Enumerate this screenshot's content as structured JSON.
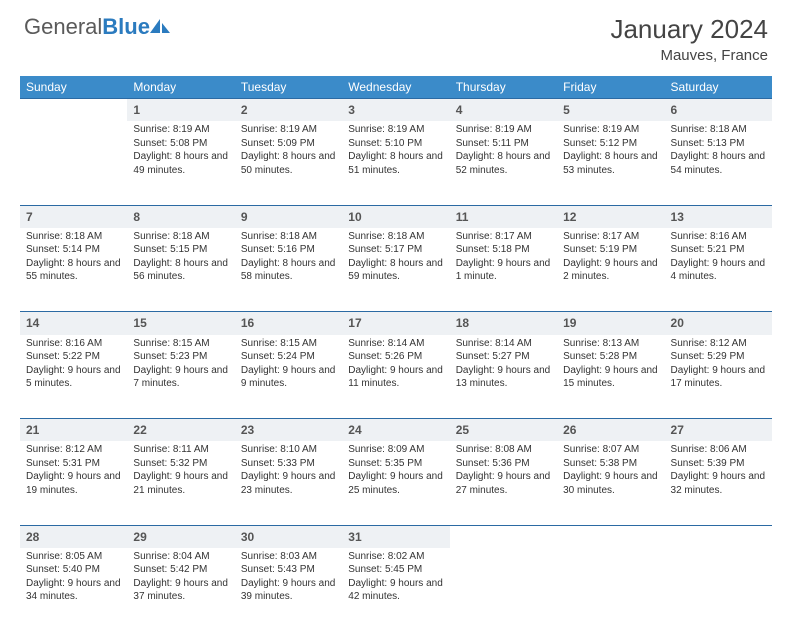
{
  "brand": {
    "part1": "General",
    "part2": "Blue"
  },
  "title": "January 2024",
  "location": "Mauves, France",
  "colors": {
    "header_bg": "#3b8bc9",
    "daynum_bg": "#eef1f4",
    "rule": "#2b6aa3"
  },
  "day_headers": [
    "Sunday",
    "Monday",
    "Tuesday",
    "Wednesday",
    "Thursday",
    "Friday",
    "Saturday"
  ],
  "weeks": [
    {
      "nums": [
        "",
        "1",
        "2",
        "3",
        "4",
        "5",
        "6"
      ],
      "cells": [
        null,
        {
          "sunrise": "Sunrise: 8:19 AM",
          "sunset": "Sunset: 5:08 PM",
          "daylight": "Daylight: 8 hours and 49 minutes."
        },
        {
          "sunrise": "Sunrise: 8:19 AM",
          "sunset": "Sunset: 5:09 PM",
          "daylight": "Daylight: 8 hours and 50 minutes."
        },
        {
          "sunrise": "Sunrise: 8:19 AM",
          "sunset": "Sunset: 5:10 PM",
          "daylight": "Daylight: 8 hours and 51 minutes."
        },
        {
          "sunrise": "Sunrise: 8:19 AM",
          "sunset": "Sunset: 5:11 PM",
          "daylight": "Daylight: 8 hours and 52 minutes."
        },
        {
          "sunrise": "Sunrise: 8:19 AM",
          "sunset": "Sunset: 5:12 PM",
          "daylight": "Daylight: 8 hours and 53 minutes."
        },
        {
          "sunrise": "Sunrise: 8:18 AM",
          "sunset": "Sunset: 5:13 PM",
          "daylight": "Daylight: 8 hours and 54 minutes."
        }
      ]
    },
    {
      "nums": [
        "7",
        "8",
        "9",
        "10",
        "11",
        "12",
        "13"
      ],
      "cells": [
        {
          "sunrise": "Sunrise: 8:18 AM",
          "sunset": "Sunset: 5:14 PM",
          "daylight": "Daylight: 8 hours and 55 minutes."
        },
        {
          "sunrise": "Sunrise: 8:18 AM",
          "sunset": "Sunset: 5:15 PM",
          "daylight": "Daylight: 8 hours and 56 minutes."
        },
        {
          "sunrise": "Sunrise: 8:18 AM",
          "sunset": "Sunset: 5:16 PM",
          "daylight": "Daylight: 8 hours and 58 minutes."
        },
        {
          "sunrise": "Sunrise: 8:18 AM",
          "sunset": "Sunset: 5:17 PM",
          "daylight": "Daylight: 8 hours and 59 minutes."
        },
        {
          "sunrise": "Sunrise: 8:17 AM",
          "sunset": "Sunset: 5:18 PM",
          "daylight": "Daylight: 9 hours and 1 minute."
        },
        {
          "sunrise": "Sunrise: 8:17 AM",
          "sunset": "Sunset: 5:19 PM",
          "daylight": "Daylight: 9 hours and 2 minutes."
        },
        {
          "sunrise": "Sunrise: 8:16 AM",
          "sunset": "Sunset: 5:21 PM",
          "daylight": "Daylight: 9 hours and 4 minutes."
        }
      ]
    },
    {
      "nums": [
        "14",
        "15",
        "16",
        "17",
        "18",
        "19",
        "20"
      ],
      "cells": [
        {
          "sunrise": "Sunrise: 8:16 AM",
          "sunset": "Sunset: 5:22 PM",
          "daylight": "Daylight: 9 hours and 5 minutes."
        },
        {
          "sunrise": "Sunrise: 8:15 AM",
          "sunset": "Sunset: 5:23 PM",
          "daylight": "Daylight: 9 hours and 7 minutes."
        },
        {
          "sunrise": "Sunrise: 8:15 AM",
          "sunset": "Sunset: 5:24 PM",
          "daylight": "Daylight: 9 hours and 9 minutes."
        },
        {
          "sunrise": "Sunrise: 8:14 AM",
          "sunset": "Sunset: 5:26 PM",
          "daylight": "Daylight: 9 hours and 11 minutes."
        },
        {
          "sunrise": "Sunrise: 8:14 AM",
          "sunset": "Sunset: 5:27 PM",
          "daylight": "Daylight: 9 hours and 13 minutes."
        },
        {
          "sunrise": "Sunrise: 8:13 AM",
          "sunset": "Sunset: 5:28 PM",
          "daylight": "Daylight: 9 hours and 15 minutes."
        },
        {
          "sunrise": "Sunrise: 8:12 AM",
          "sunset": "Sunset: 5:29 PM",
          "daylight": "Daylight: 9 hours and 17 minutes."
        }
      ]
    },
    {
      "nums": [
        "21",
        "22",
        "23",
        "24",
        "25",
        "26",
        "27"
      ],
      "cells": [
        {
          "sunrise": "Sunrise: 8:12 AM",
          "sunset": "Sunset: 5:31 PM",
          "daylight": "Daylight: 9 hours and 19 minutes."
        },
        {
          "sunrise": "Sunrise: 8:11 AM",
          "sunset": "Sunset: 5:32 PM",
          "daylight": "Daylight: 9 hours and 21 minutes."
        },
        {
          "sunrise": "Sunrise: 8:10 AM",
          "sunset": "Sunset: 5:33 PM",
          "daylight": "Daylight: 9 hours and 23 minutes."
        },
        {
          "sunrise": "Sunrise: 8:09 AM",
          "sunset": "Sunset: 5:35 PM",
          "daylight": "Daylight: 9 hours and 25 minutes."
        },
        {
          "sunrise": "Sunrise: 8:08 AM",
          "sunset": "Sunset: 5:36 PM",
          "daylight": "Daylight: 9 hours and 27 minutes."
        },
        {
          "sunrise": "Sunrise: 8:07 AM",
          "sunset": "Sunset: 5:38 PM",
          "daylight": "Daylight: 9 hours and 30 minutes."
        },
        {
          "sunrise": "Sunrise: 8:06 AM",
          "sunset": "Sunset: 5:39 PM",
          "daylight": "Daylight: 9 hours and 32 minutes."
        }
      ]
    },
    {
      "nums": [
        "28",
        "29",
        "30",
        "31",
        "",
        "",
        ""
      ],
      "cells": [
        {
          "sunrise": "Sunrise: 8:05 AM",
          "sunset": "Sunset: 5:40 PM",
          "daylight": "Daylight: 9 hours and 34 minutes."
        },
        {
          "sunrise": "Sunrise: 8:04 AM",
          "sunset": "Sunset: 5:42 PM",
          "daylight": "Daylight: 9 hours and 37 minutes."
        },
        {
          "sunrise": "Sunrise: 8:03 AM",
          "sunset": "Sunset: 5:43 PM",
          "daylight": "Daylight: 9 hours and 39 minutes."
        },
        {
          "sunrise": "Sunrise: 8:02 AM",
          "sunset": "Sunset: 5:45 PM",
          "daylight": "Daylight: 9 hours and 42 minutes."
        },
        null,
        null,
        null
      ]
    }
  ]
}
